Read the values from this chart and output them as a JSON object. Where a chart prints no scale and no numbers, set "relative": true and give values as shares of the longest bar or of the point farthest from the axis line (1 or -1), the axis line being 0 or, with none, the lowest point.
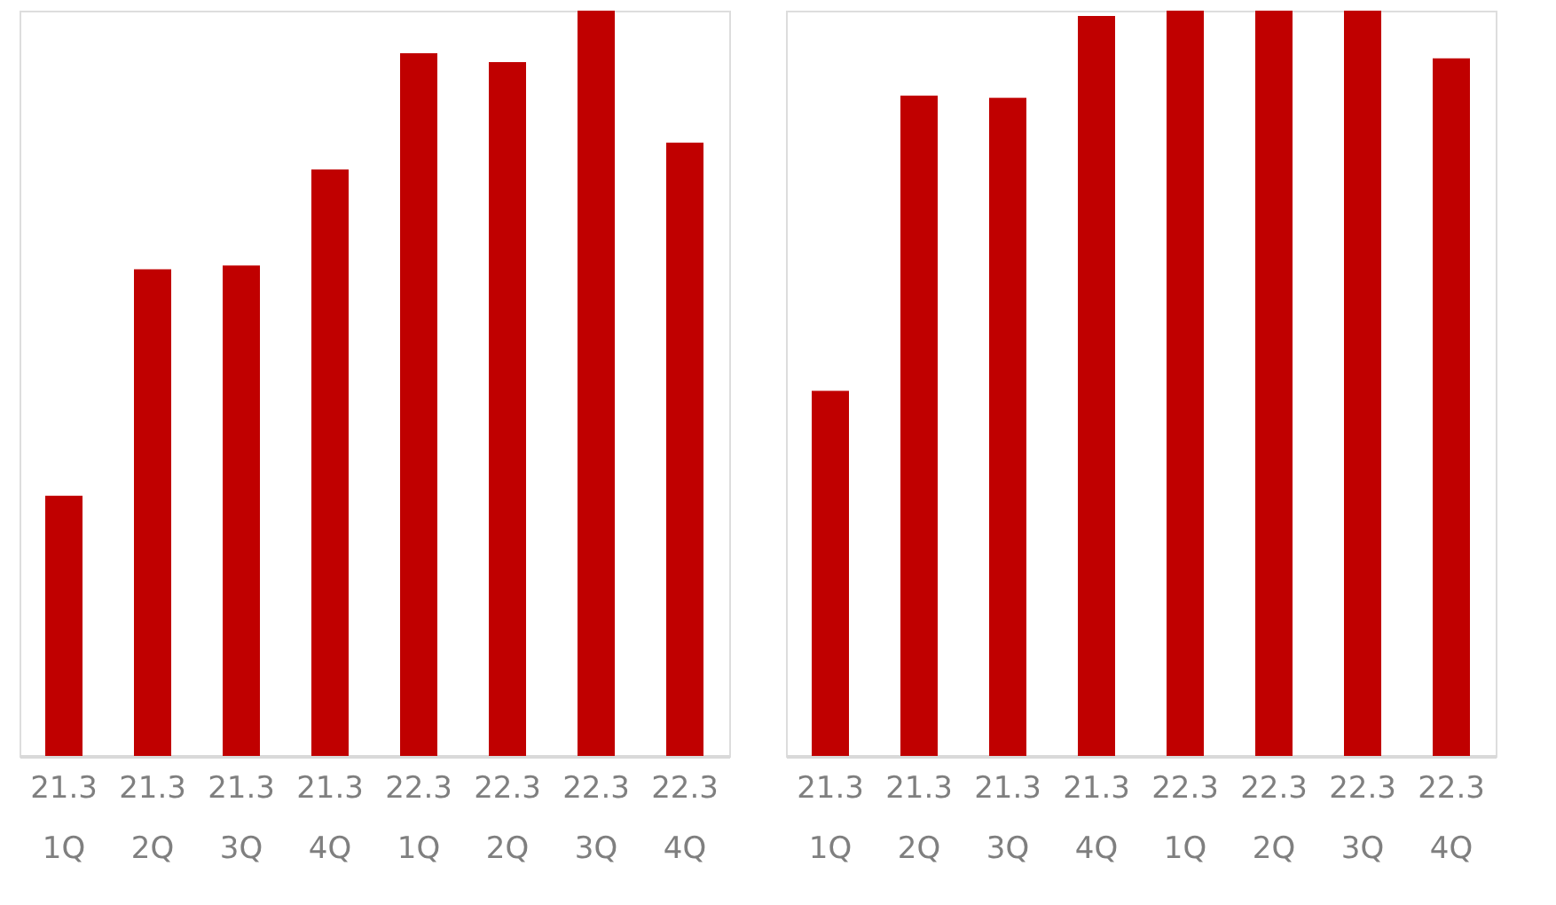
{
  "chart_data": [
    {
      "type": "bar",
      "relative": true,
      "categories": [
        "21.3\n1Q",
        "21.3\n2Q",
        "21.3\n3Q",
        "21.3\n4Q",
        "22.3\n1Q",
        "22.3\n2Q",
        "22.3\n3Q",
        "22.3\n4Q"
      ],
      "series": [
        {
          "color": "#c00000",
          "values": [
            0.349,
            0.653,
            0.658,
            0.787,
            0.943,
            0.931,
            1,
            0.823
          ]
        }
      ]
    },
    {
      "type": "bar",
      "relative": true,
      "categories": [
        "21.3\n1Q",
        "21.3\n2Q",
        "21.3\n3Q",
        "21.3\n4Q",
        "22.3\n1Q",
        "22.3\n2Q",
        "22.3\n3Q",
        "22.3\n4Q"
      ],
      "series": [
        {
          "color": "#c00000",
          "values": [
            0.49,
            0.886,
            0.883,
            0.993,
            1,
            1,
            1,
            0.936
          ]
        }
      ]
    }
  ]
}
